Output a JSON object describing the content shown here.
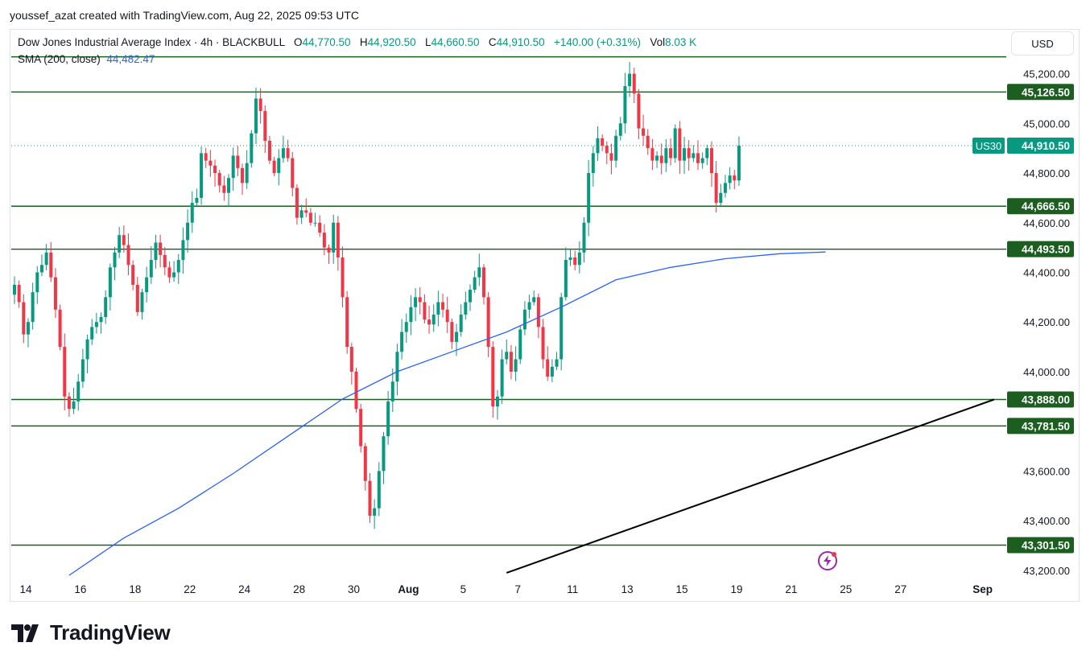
{
  "author_line": "youssef_azat created with TradingView.com, Aug 22, 2025 09:53 UTC",
  "legend": {
    "title": "Dow Jones Industrial Average Index · 4h · BLACKBULL",
    "o_label": "O",
    "o_val": "44,770.50",
    "h_label": "H",
    "h_val": "44,920.50",
    "l_label": "L",
    "l_val": "44,660.50",
    "c_label": "C",
    "c_val": "44,910.50",
    "change": "+140.00 (+0.31%)",
    "vol_label": "Vol",
    "vol_val": "8.03 K"
  },
  "sma": {
    "label": "SMA (200, close)",
    "value": "44,482.47"
  },
  "currency": "USD",
  "brand": "TradingView",
  "colors": {
    "up": "#089981",
    "down": "#f23645",
    "sma": "#2962ff",
    "hline": "#1b5e20",
    "trend": "#000000"
  },
  "chart_data": {
    "type": "candlestick",
    "title": "Dow Jones Industrial Average Index · 4h · BLACKBULL",
    "symbol_badge": "US30",
    "last_price": 44910.5,
    "last_price_label": "44,910.50",
    "y_range": [
      43180,
      45270
    ],
    "y_ticks": [
      45200,
      45000,
      44800,
      44600,
      44400,
      44200,
      44000,
      43600,
      43400,
      43200
    ],
    "y_tick_labels": [
      "45,200.00",
      "45,000.00",
      "44,800.00",
      "44,600.00",
      "44,400.00",
      "44,200.00",
      "44,000.00",
      "43,600.00",
      "43,400.00",
      "43,200.00"
    ],
    "x_ticks": [
      "14",
      "16",
      "18",
      "22",
      "24",
      "28",
      "30",
      "Aug",
      "5",
      "7",
      "11",
      "13",
      "15",
      "19",
      "21",
      "25",
      "27",
      "Sep"
    ],
    "x_tick_index": [
      0,
      12,
      24,
      36,
      48,
      60,
      72,
      84,
      96,
      108,
      120,
      132,
      144,
      156,
      168,
      180,
      192,
      210
    ],
    "horizontal_levels": [
      {
        "value": 45268,
        "label": ""
      },
      {
        "value": 45126.5,
        "label": "45,126.50"
      },
      {
        "value": 44666.5,
        "label": "44,666.50"
      },
      {
        "value": 44493.5,
        "label": "44,493.50"
      },
      {
        "value": 43888.0,
        "label": "43,888.00"
      },
      {
        "value": 43781.5,
        "label": "43,781.50"
      },
      {
        "value": 43301.5,
        "label": "43,301.50"
      }
    ],
    "trendline": [
      {
        "i": 108,
        "v": 43190
      },
      {
        "i": 215,
        "v": 43888
      }
    ],
    "sma_points": [
      [
        12,
        43180
      ],
      [
        24,
        43330
      ],
      [
        36,
        43450
      ],
      [
        48,
        43590
      ],
      [
        60,
        43740
      ],
      [
        72,
        43890
      ],
      [
        84,
        44000
      ],
      [
        96,
        44080
      ],
      [
        108,
        44160
      ],
      [
        120,
        44260
      ],
      [
        132,
        44370
      ],
      [
        144,
        44420
      ],
      [
        156,
        44455
      ],
      [
        168,
        44475
      ],
      [
        178,
        44482
      ]
    ],
    "closes": [
      44350,
      44280,
      44150,
      44200,
      44320,
      44400,
      44430,
      44480,
      44380,
      44250,
      44100,
      43900,
      43850,
      43880,
      43960,
      44050,
      44130,
      44180,
      44200,
      44220,
      44300,
      44420,
      44480,
      44550,
      44510,
      44430,
      44350,
      44240,
      44320,
      44380,
      44450,
      44520,
      44470,
      44420,
      44380,
      44400,
      44450,
      44530,
      44600,
      44680,
      44700,
      44880,
      44850,
      44830,
      44800,
      44750,
      44720,
      44780,
      44870,
      44820,
      44760,
      44840,
      44960,
      45100,
      45050,
      44930,
      44850,
      44800,
      44860,
      44900,
      44860,
      44740,
      44620,
      44650,
      44640,
      44600,
      44600,
      44560,
      44500,
      44480,
      44600,
      44460,
      44300,
      44100,
      44000,
      43850,
      43700,
      43560,
      43420,
      43450,
      43600,
      43740,
      43880,
      43960,
      44080,
      44160,
      44200,
      44260,
      44300,
      44280,
      44210,
      44190,
      44230,
      44280,
      44250,
      44200,
      44120,
      44160,
      44230,
      44280,
      44330,
      44380,
      44420,
      44300,
      44100,
      43860,
      43900,
      44050,
      44080,
      44000,
      44050,
      44170,
      44250,
      44280,
      44300,
      44180,
      44050,
      43980,
      44020,
      44050,
      44300,
      44450,
      44460,
      44430,
      44480,
      44600,
      44800,
      44880,
      44940,
      44910,
      44880,
      44850,
      44950,
      45000,
      45150,
      45200,
      45120,
      44980,
      44950,
      44900,
      44850,
      44870,
      44840,
      44900,
      44860,
      44980,
      44850,
      44900,
      44860,
      44880,
      44840,
      44860,
      44900,
      44800,
      44680,
      44720,
      44760,
      44790,
      44770,
      44910
    ],
    "volume_label": "8.03 K"
  }
}
